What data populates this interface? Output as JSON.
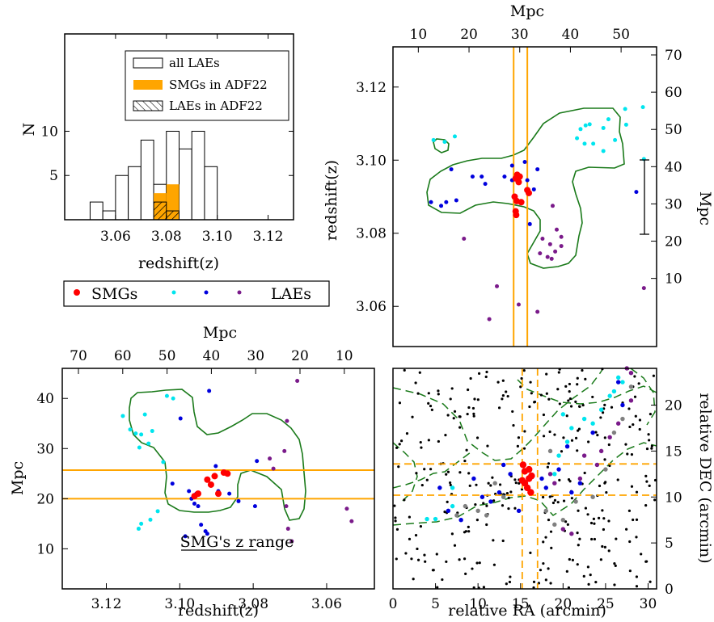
{
  "colors": {
    "smg": "#ff0000",
    "lae_cyan": "#00e5ee",
    "lae_blue": "#0000dd",
    "lae_purple": "#7a1a8a",
    "orange": "#ffa500",
    "contour": "#1a7a1a",
    "gray": "#808080",
    "black": "#000000"
  },
  "chart_data": [
    {
      "panel": "histogram",
      "type": "bar",
      "xlabel": "redshift(z)",
      "ylabel": "N",
      "xlim": [
        3.04,
        3.13
      ],
      "ylim": [
        0,
        21
      ],
      "xticks": [
        "3.06",
        "3.08",
        "3.10",
        "3.12"
      ],
      "yticks": [
        "5",
        "10"
      ],
      "bin_width": 0.005,
      "bins": [
        3.0525,
        3.0575,
        3.0625,
        3.0675,
        3.0725,
        3.0775,
        3.0825,
        3.0875,
        3.0925,
        3.0975,
        3.1025,
        3.1075
      ],
      "series": [
        {
          "name": "all LAEs",
          "values": [
            2,
            1,
            5,
            6,
            9,
            4,
            10,
            8,
            10,
            6,
            0,
            0
          ],
          "style": "open"
        },
        {
          "name": "SMGs in ADF22",
          "values": [
            0,
            0,
            0,
            0,
            0,
            3,
            4,
            0,
            0,
            0,
            0,
            0
          ],
          "style": "filled"
        },
        {
          "name": "LAEs in ADF22",
          "values": [
            0,
            0,
            0,
            0,
            0,
            2,
            1,
            0,
            0,
            0,
            0,
            0
          ],
          "style": "hatched"
        }
      ],
      "legend": [
        "all LAEs",
        "SMGs in ADF22",
        "LAEs in ADF22"
      ],
      "legend_position": "top-right"
    },
    {
      "panel": "markers_legend",
      "type": "scatter",
      "labels": [
        "SMGs",
        "LAEs"
      ]
    },
    {
      "panel": "redshift_vs_mpc",
      "type": "scatter",
      "xlabel_top": "Mpc",
      "ylabel": "redshift(z)",
      "ylabel_right": "Mpc",
      "xlim": [
        5,
        57
      ],
      "ylim": [
        3.049,
        3.131
      ],
      "xticks": [
        "10",
        "20",
        "30",
        "40",
        "50"
      ],
      "yticks": [
        "3.06",
        "3.08",
        "3.10",
        "3.12"
      ],
      "yticks_right": [
        "10",
        "20",
        "30",
        "40",
        "50",
        "60",
        "70"
      ],
      "vlines": [
        28.8,
        31.5
      ],
      "scale_bar": "10 Mpc",
      "series": [
        {
          "color": "cyan",
          "points": [
            [
              13.0,
              3.1055
            ],
            [
              15.2,
              3.105
            ],
            [
              17.2,
              3.1065
            ],
            [
              41.3,
              3.106
            ],
            [
              42.0,
              3.1085
            ],
            [
              43.0,
              3.1095
            ],
            [
              43.8,
              3.1098
            ],
            [
              42.8,
              3.1045
            ],
            [
              44.5,
              3.1045
            ],
            [
              46.5,
              3.1088
            ],
            [
              47.5,
              3.1112
            ],
            [
              46.5,
              3.1025
            ],
            [
              48.8,
              3.1055
            ],
            [
              51.0,
              3.1097
            ],
            [
              50.8,
              3.114
            ],
            [
              54.3,
              3.1145
            ],
            [
              54.5,
              3.1003
            ]
          ]
        },
        {
          "color": "blue",
          "points": [
            [
              16.5,
              3.0975
            ],
            [
              12.5,
              3.0885
            ],
            [
              14.5,
              3.0875
            ],
            [
              15.5,
              3.0885
            ],
            [
              17.5,
              3.089
            ],
            [
              20.7,
              3.0955
            ],
            [
              22.5,
              3.0955
            ],
            [
              23.2,
              3.0935
            ],
            [
              27.0,
              3.0955
            ],
            [
              28.5,
              3.0985
            ],
            [
              28.5,
              3.0945
            ],
            [
              31.5,
              3.0945
            ],
            [
              32.8,
              3.092
            ],
            [
              31.0,
              3.0995
            ],
            [
              33.5,
              3.0975
            ],
            [
              32.0,
              3.0825
            ],
            [
              53.0,
              3.0913
            ]
          ]
        },
        {
          "color": "purple",
          "points": [
            [
              19.0,
              3.0785
            ],
            [
              25.5,
              3.0655
            ],
            [
              24.0,
              3.0565
            ],
            [
              29.8,
              3.0605
            ],
            [
              33.5,
              3.0585
            ],
            [
              36.5,
              3.0875
            ],
            [
              37.3,
              3.081
            ],
            [
              38.2,
              3.079
            ],
            [
              38.2,
              3.0765
            ],
            [
              36.3,
              3.073
            ],
            [
              34.0,
              3.0745
            ],
            [
              35.5,
              3.0735
            ],
            [
              34.5,
              3.0785
            ],
            [
              36.0,
              3.077
            ],
            [
              37.0,
              3.075
            ],
            [
              54.5,
              3.065
            ]
          ]
        },
        {
          "color": "red",
          "points": [
            [
              29.2,
              3.095
            ],
            [
              29.5,
              3.096
            ],
            [
              30.0,
              3.0955
            ],
            [
              29.8,
              3.094
            ],
            [
              31.5,
              3.0918
            ],
            [
              31.8,
              3.091
            ],
            [
              29.0,
              3.09
            ],
            [
              29.4,
              3.0888
            ],
            [
              30.3,
              3.0885
            ],
            [
              29.2,
              3.086
            ],
            [
              29.3,
              3.085
            ]
          ]
        }
      ]
    },
    {
      "panel": "mpc_vs_redshift",
      "type": "scatter",
      "xlabel": "redshift(z)",
      "xlabel_top": "Mpc",
      "ylabel": "Mpc",
      "xlim": [
        3.132,
        3.047
      ],
      "ylim": [
        2,
        46
      ],
      "xticks": [
        "3.12",
        "3.10",
        "3.08",
        "3.06"
      ],
      "xticks_top": [
        "70",
        "60",
        "50",
        "40",
        "30",
        "20",
        "10"
      ],
      "yticks": [
        "10",
        "20",
        "30",
        "40"
      ],
      "hlines": [
        20.0,
        25.7
      ],
      "annotation": "SMG's z range",
      "series": [
        {
          "color": "cyan",
          "points": [
            [
              3.1155,
              36.5
            ],
            [
              3.1135,
              33.8
            ],
            [
              3.112,
              33.0
            ],
            [
              3.1095,
              36.8
            ],
            [
              3.1105,
              32.8
            ],
            [
              3.111,
              30.2
            ],
            [
              3.1085,
              31.0
            ],
            [
              3.1075,
              33.5
            ],
            [
              3.1045,
              27.3
            ],
            [
              3.1035,
              40.5
            ],
            [
              3.1018,
              40.0
            ],
            [
              3.108,
              15.8
            ],
            [
              3.1105,
              15.0
            ],
            [
              3.1112,
              14.0
            ],
            [
              3.106,
              17.5
            ]
          ]
        },
        {
          "color": "blue",
          "points": [
            [
              3.0998,
              36.0
            ],
            [
              3.102,
              23.0
            ],
            [
              3.0975,
              21.5
            ],
            [
              3.0968,
              20.0
            ],
            [
              3.096,
              19.0
            ],
            [
              3.0955,
              21.0
            ],
            [
              3.095,
              18.5
            ],
            [
              3.0942,
              14.8
            ],
            [
              3.093,
              13.5
            ],
            [
              3.0925,
              13.0
            ],
            [
              3.092,
              41.5
            ],
            [
              3.0895,
              21.5
            ],
            [
              3.0902,
              26.5
            ],
            [
              3.0865,
              21.0
            ],
            [
              3.084,
              19.5
            ],
            [
              3.079,
              27.5
            ],
            [
              3.0795,
              18.5
            ],
            [
              3.0985,
              12.5
            ]
          ]
        },
        {
          "color": "purple",
          "points": [
            [
              3.0755,
              28.0
            ],
            [
              3.0745,
              26.0
            ],
            [
              3.0715,
              29.5
            ],
            [
              3.0708,
              35.5
            ],
            [
              3.071,
              18.5
            ],
            [
              3.0705,
              14.0
            ],
            [
              3.068,
              43.5
            ],
            [
              3.0695,
              11.5
            ],
            [
              3.0545,
              18.0
            ],
            [
              3.0532,
              15.5
            ]
          ]
        },
        {
          "color": "red",
          "points": [
            [
              3.096,
              20.5
            ],
            [
              3.095,
              21.0
            ],
            [
              3.0925,
              23.8
            ],
            [
              3.0915,
              22.8
            ],
            [
              3.0905,
              24.5
            ],
            [
              3.0895,
              21.0
            ],
            [
              3.088,
              25.2
            ],
            [
              3.087,
              25.0
            ]
          ]
        }
      ]
    },
    {
      "panel": "sky_map",
      "type": "scatter",
      "xlabel": "relative RA (arcmin)",
      "ylabel_right": "relative DEC (arcmin)",
      "xlim": [
        0,
        31
      ],
      "ylim": [
        0,
        24
      ],
      "xticks": [
        "0",
        "5",
        "10",
        "15",
        "20",
        "25",
        "30"
      ],
      "yticks": [
        "0",
        "5",
        "10",
        "15",
        "20"
      ],
      "vlines": [
        15.2,
        17.0
      ],
      "hlines": [
        10.2,
        13.6
      ],
      "series": [
        {
          "color": "cyan",
          "points": [
            [
              4.0,
              7.6
            ],
            [
              5.0,
              7.6
            ],
            [
              7.0,
              9.0
            ],
            [
              19.0,
              12.5
            ],
            [
              19.5,
              14.5
            ],
            [
              20.5,
              16.0
            ],
            [
              21.0,
              17.5
            ],
            [
              22.5,
              18.5
            ],
            [
              23.5,
              18.0
            ],
            [
              24.5,
              19.5
            ],
            [
              25.5,
              21.0
            ],
            [
              26.0,
              21.5
            ],
            [
              27.0,
              22.5
            ],
            [
              20.0,
              19.0
            ],
            [
              26.5,
              23.0
            ],
            [
              13.0,
              10.0
            ],
            [
              7.0,
              11.0
            ]
          ]
        },
        {
          "color": "blue",
          "points": [
            [
              5.5,
              11.0
            ],
            [
              6.5,
              8.5
            ],
            [
              8.0,
              7.5
            ],
            [
              9.5,
              12.0
            ],
            [
              10.5,
              10.0
            ],
            [
              11.5,
              9.5
            ],
            [
              12.5,
              10.5
            ],
            [
              13.0,
              13.5
            ],
            [
              13.8,
              12.5
            ],
            [
              14.8,
              8.5
            ],
            [
              17.5,
              12.0
            ],
            [
              18.0,
              11.0
            ],
            [
              19.5,
              13.0
            ],
            [
              20.5,
              15.5
            ],
            [
              21.0,
              10.5
            ],
            [
              22.0,
              11.5
            ],
            [
              23.5,
              17.0
            ],
            [
              26.5,
              22.5
            ],
            [
              27.0,
              20.0
            ]
          ]
        },
        {
          "color": "purple",
          "points": [
            [
              18.5,
              12.5
            ],
            [
              19.0,
              11.5
            ],
            [
              20.0,
              6.5
            ],
            [
              21.0,
              6.0
            ],
            [
              22.0,
              12.0
            ],
            [
              22.5,
              14.5
            ],
            [
              24.0,
              13.5
            ],
            [
              24.5,
              15.0
            ],
            [
              25.5,
              16.5
            ],
            [
              26.5,
              18.0
            ],
            [
              28.0,
              20.5
            ],
            [
              28.0,
              23.5
            ],
            [
              27.5,
              24.0
            ]
          ]
        },
        {
          "color": "gray",
          "points": [
            [
              7.5,
              8.0
            ],
            [
              8.5,
              9.0
            ],
            [
              10.0,
              8.5
            ],
            [
              11.0,
              8.0
            ],
            [
              12.0,
              11.5
            ],
            [
              13.0,
              10.0
            ],
            [
              18.0,
              8.5
            ],
            [
              19.0,
              7.0
            ],
            [
              20.0,
              7.5
            ],
            [
              21.5,
              9.5
            ],
            [
              23.5,
              10.0
            ],
            [
              25.0,
              13.0
            ],
            [
              26.0,
              17.0
            ],
            [
              27.0,
              18.5
            ],
            [
              28.0,
              22.0
            ],
            [
              18.5,
              15.0
            ]
          ]
        },
        {
          "color": "red",
          "points": [
            [
              15.3,
              13.5
            ],
            [
              15.5,
              12.8
            ],
            [
              16.0,
              12.0
            ],
            [
              15.8,
              11.0
            ],
            [
              16.2,
              10.5
            ],
            [
              16.0,
              13.0
            ],
            [
              15.5,
              11.5
            ],
            [
              16.3,
              12.3
            ],
            [
              15.2,
              11.8
            ]
          ]
        }
      ]
    }
  ]
}
